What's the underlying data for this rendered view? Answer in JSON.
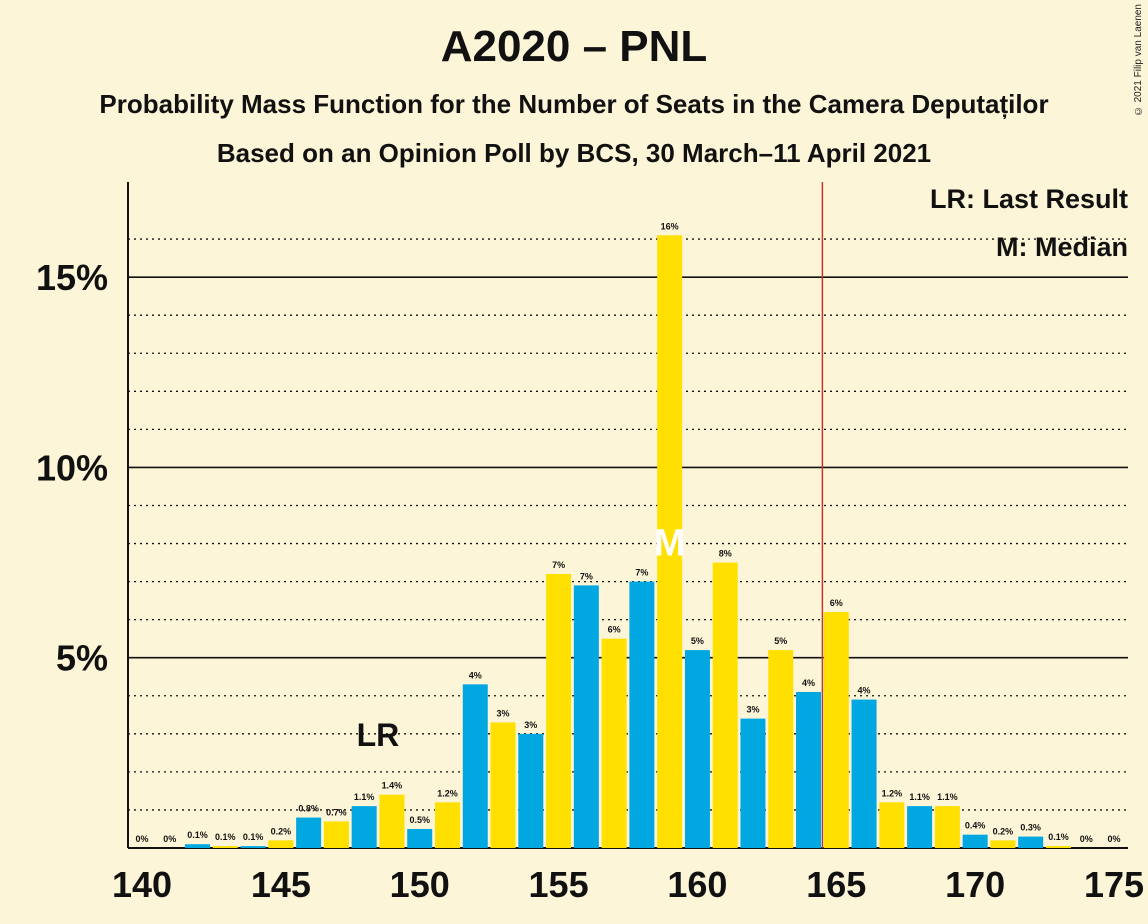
{
  "header": {
    "title": "A2020 – PNL",
    "subtitle1": "Probability Mass Function for the Number of Seats in the Camera Deputaților",
    "subtitle2": "Based on an Opinion Poll by BCS, 30 March–11 April 2021",
    "copyright": "© 2021 Filip van Laenen"
  },
  "legend": {
    "lr": "LR: Last Result",
    "m": "M: Median"
  },
  "colors": {
    "background": "#fdf5d7",
    "blue": "#00a7e1",
    "yellow": "#ffe000",
    "median_marker": "#ffffff",
    "last_result_line": "#c0392b"
  },
  "chart_data": {
    "type": "bar",
    "x": [
      140,
      141,
      142,
      143,
      144,
      145,
      146,
      147,
      148,
      149,
      150,
      151,
      152,
      153,
      154,
      155,
      156,
      157,
      158,
      159,
      160,
      161,
      162,
      163,
      164,
      165,
      166,
      167,
      168,
      169,
      170,
      171,
      172,
      173,
      174,
      175
    ],
    "values": [
      0,
      0,
      0.1,
      0.05,
      0.05,
      0.2,
      0.8,
      0.7,
      1.1,
      1.4,
      0.5,
      1.2,
      4.3,
      3.3,
      3.0,
      7.2,
      6.9,
      5.5,
      7.0,
      16.1,
      5.2,
      7.5,
      3.4,
      5.2,
      4.1,
      6.2,
      3.9,
      1.2,
      1.1,
      1.1,
      0.35,
      0.2,
      0.3,
      0.05,
      0,
      0
    ],
    "labels": [
      "0%",
      "0%",
      "0.1%",
      "0.1%",
      "0.1%",
      "0.2%",
      "0.8%",
      "0.7%",
      "1.1%",
      "1.4%",
      "0.5%",
      "1.2%",
      "4%",
      "3%",
      "3%",
      "7%",
      "7%",
      "6%",
      "7%",
      "16%",
      "5%",
      "8%",
      "3%",
      "5%",
      "4%",
      "6%",
      "4%",
      "1.2%",
      "1.1%",
      "1.1%",
      "0.4%",
      "0.2%",
      "0.3%",
      "0.1%",
      "0%",
      "0%"
    ],
    "xticks": [
      140,
      145,
      150,
      155,
      160,
      165,
      170,
      175
    ],
    "xtick_labels": [
      "140",
      "145",
      "150",
      "155",
      "160",
      "165",
      "170",
      "175"
    ],
    "yticks": [
      5,
      10,
      15
    ],
    "ytick_labels": [
      "5%",
      "10%",
      "15%"
    ],
    "ylim": [
      0,
      17.5
    ],
    "xlim": [
      140,
      175
    ],
    "median": 159,
    "median_label": "M",
    "last_result": 149,
    "last_result_label": "LR",
    "majority_line": 164.5,
    "grid": true,
    "legend_position": "top-right"
  }
}
